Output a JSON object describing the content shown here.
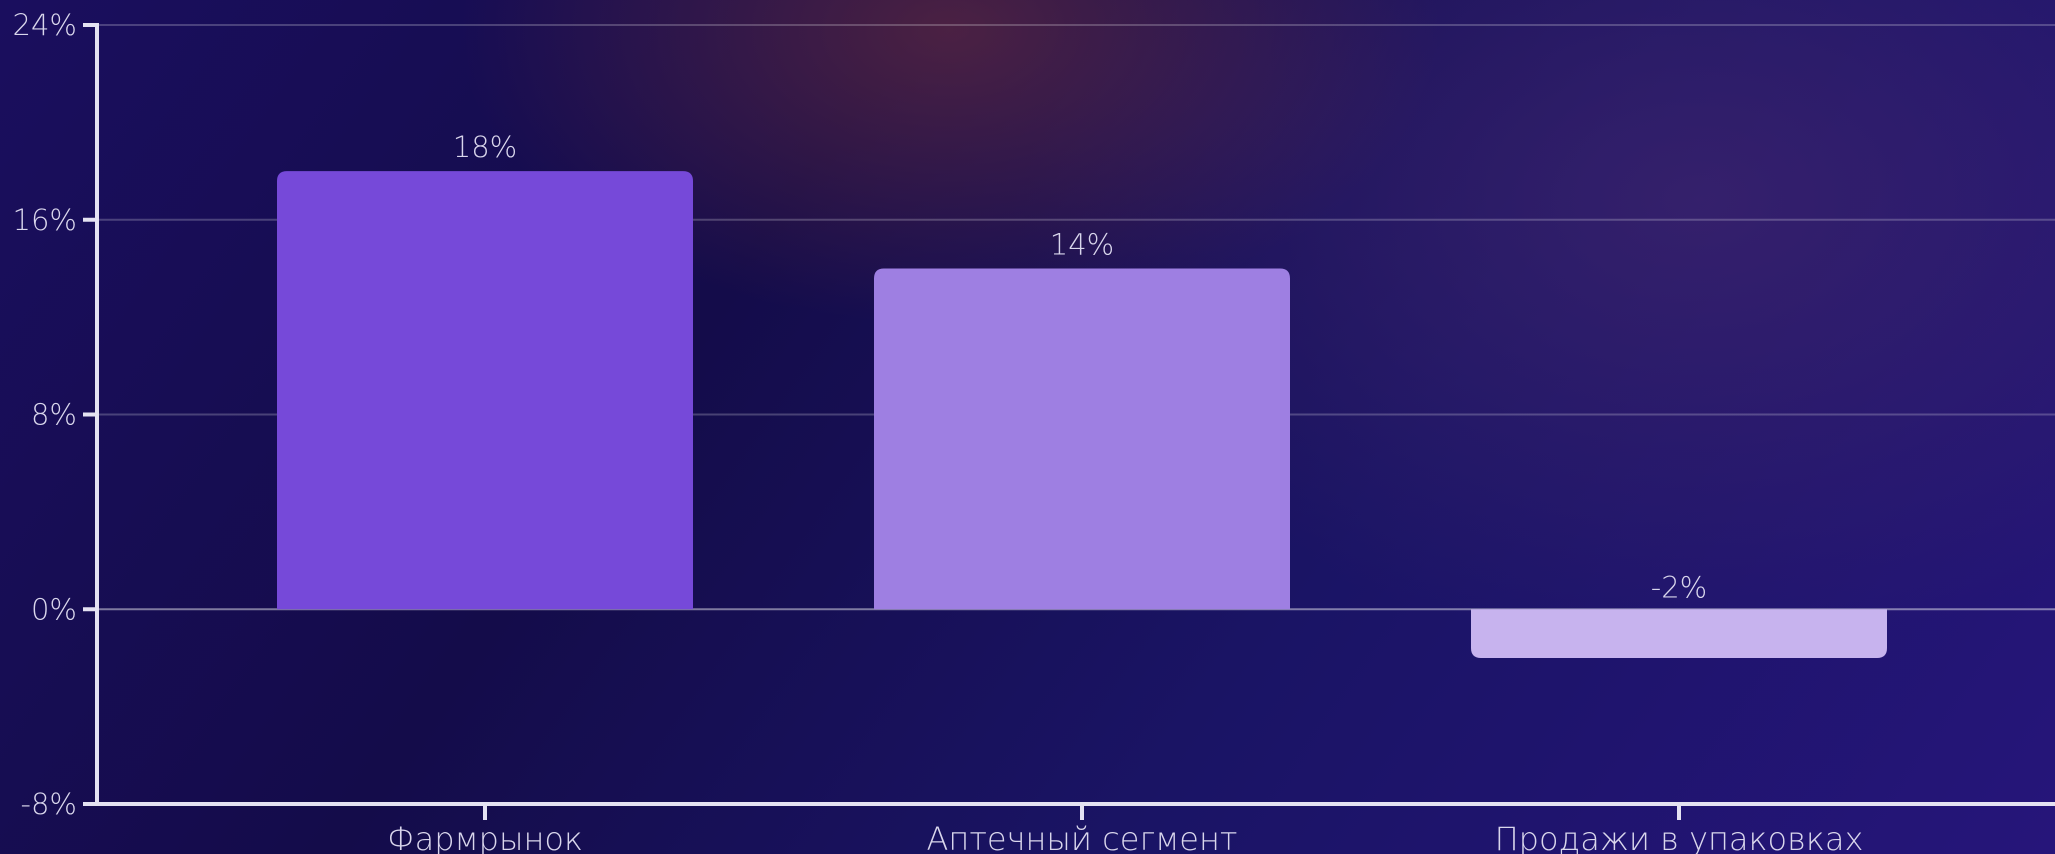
{
  "chart_data": {
    "type": "bar",
    "categories": [
      "Фармрынок",
      "Аптечный сегмент",
      "Продажи в упаковках"
    ],
    "values": [
      18,
      14,
      -2
    ],
    "data_labels": [
      "18%",
      "14%",
      "-2%"
    ],
    "bar_colors": [
      "#7649d9",
      "#9e7fe2",
      "#c7b3ee"
    ],
    "ylim": [
      -8,
      24
    ],
    "yticks": [
      -8,
      0,
      8,
      16,
      24
    ],
    "ytick_labels": [
      "-8%",
      "0%",
      "8%",
      "16%",
      "24%"
    ],
    "title": "",
    "xlabel": "",
    "ylabel": "",
    "grid": true,
    "legend": "none"
  }
}
